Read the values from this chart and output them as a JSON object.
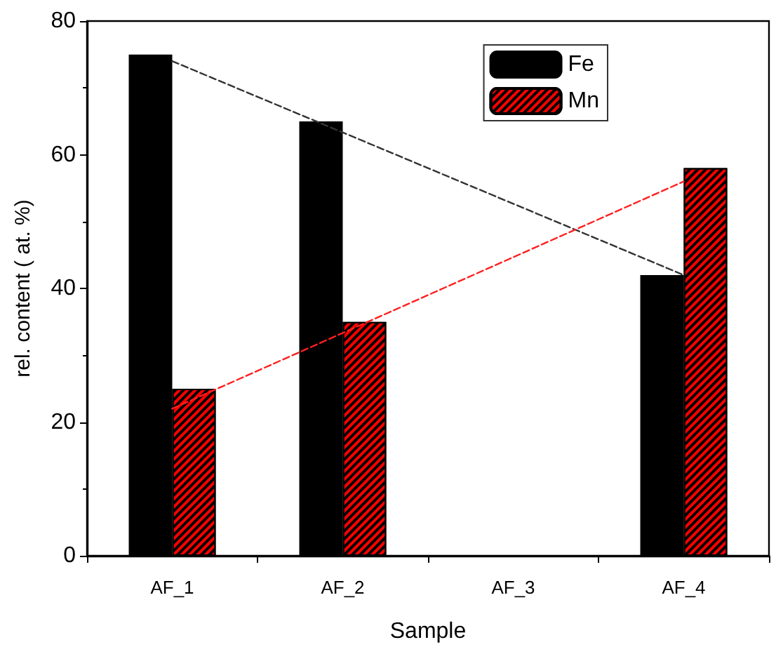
{
  "chart_data": {
    "type": "bar",
    "xlabel": "Sample",
    "ylabel": "rel. content ( at. %)",
    "categories": [
      "AF_1",
      "AF_2",
      "AF_3",
      "AF_4"
    ],
    "series": [
      {
        "name": "Fe",
        "color": "#000000",
        "values": [
          75,
          65,
          null,
          42
        ]
      },
      {
        "name": "Mn",
        "color": "#ff0000",
        "values": [
          25,
          35,
          null,
          58
        ]
      },
      {
        "type": "line",
        "color": "#333333",
        "line_style": "dashed",
        "x": [
          "AF_1",
          "AF_4"
        ],
        "values": [
          74,
          42
        ]
      },
      {
        "type": "line",
        "color": "#ff2020",
        "line_style": "dashed",
        "x": [
          "AF_1",
          "AF_4"
        ],
        "values": [
          22,
          56
        ]
      }
    ],
    "ylim": [
      0,
      80
    ],
    "yticks": [
      0,
      20,
      40,
      60,
      80
    ],
    "grid": false,
    "legend": "top right"
  }
}
